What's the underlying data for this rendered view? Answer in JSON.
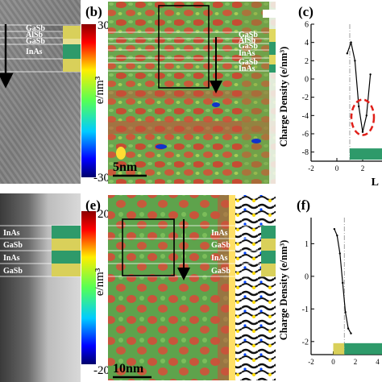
{
  "panels": {
    "b": {
      "label": "(b)",
      "scale_bar": "5nm",
      "layers": [
        "GaSb",
        "AlSb",
        "GaSb",
        "InAs",
        "GaSb",
        "InAs"
      ]
    },
    "c": {
      "label": "(c)"
    },
    "e": {
      "label": "(e)",
      "scale_bar": "10nm",
      "layers": [
        "InAs",
        "GaSb",
        "InAs",
        "GaSb"
      ]
    },
    "f": {
      "label": "(f)"
    }
  },
  "left_top": {
    "layers": [
      "GaSb",
      "AlSb",
      "GaSb",
      "InAs"
    ]
  },
  "left_bottom": {
    "layers": [
      "InAs",
      "GaSb",
      "InAs",
      "GaSb"
    ]
  },
  "colorbars": [
    {
      "max": "30",
      "min": "-30",
      "unit": "e/nm³"
    },
    {
      "max": "20",
      "min": "-20",
      "unit": "e/nm³"
    }
  ],
  "colors": {
    "map_green": "#5aa34a",
    "map_red": "#c8523a",
    "layer_green": "#2e9a6a",
    "layer_yellow": "#d9d05a"
  },
  "chart_data": [
    {
      "type": "line",
      "ylabel": "Charge Density (e/nm³)",
      "xlabel": "L",
      "y_ticks": [
        "6",
        "4",
        "2",
        "0",
        "-2",
        "-4",
        "-6",
        "-8"
      ],
      "x_ticks": [
        "-2",
        "0",
        "2"
      ],
      "ylim": [
        -9,
        6
      ],
      "xlim": [
        -2,
        3.5
      ],
      "x": [
        0.8,
        1.1,
        1.4,
        1.7,
        2.0,
        2.3,
        2.6
      ],
      "y": [
        2.8,
        4.0,
        2.0,
        -3.0,
        -5.8,
        -4.0,
        0.5
      ]
    },
    {
      "type": "line",
      "ylabel": "Charge Density (e/nm³)",
      "xlabel": "",
      "y_ticks": [
        "1",
        "0",
        "-1",
        "-2"
      ],
      "x_ticks": [
        "-2",
        "0",
        "2",
        "4"
      ],
      "ylim": [
        -2.4,
        1.8
      ],
      "xlim": [
        -2,
        4.4
      ],
      "x": [
        0.1,
        0.35,
        0.6,
        0.85,
        1.1,
        1.35,
        1.6
      ],
      "y": [
        1.45,
        1.25,
        0.7,
        -0.2,
        -1.1,
        -1.6,
        -1.75
      ]
    }
  ]
}
